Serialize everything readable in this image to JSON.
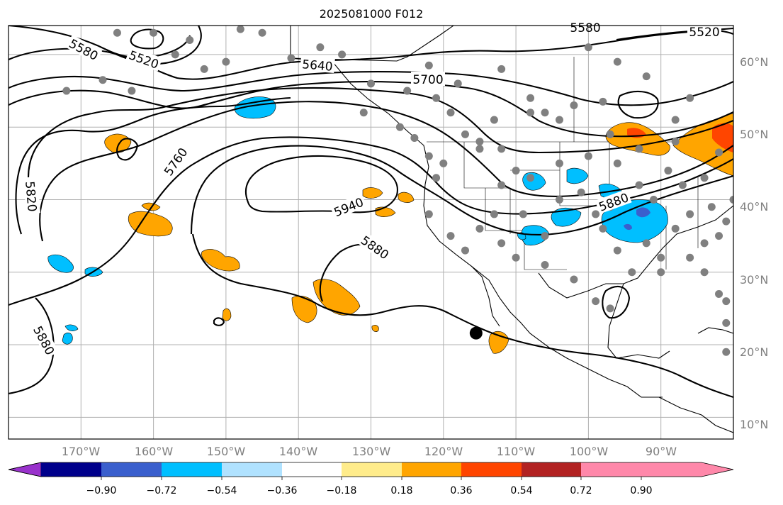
{
  "title": "2025081000 F012",
  "map": {
    "lon_range": [
      -180,
      -80
    ],
    "lat_range": [
      7,
      64
    ],
    "grid": true,
    "lon_ticks": [
      "170°W",
      "160°W",
      "150°W",
      "140°W",
      "130°W",
      "120°W",
      "110°W",
      "100°W",
      "90°W"
    ],
    "lat_ticks": [
      "10°N",
      "20°N",
      "30°N",
      "40°N",
      "50°N",
      "60°N"
    ],
    "lat_ticks_side": "right",
    "contour_labels": [
      "5580",
      "5520",
      "5640",
      "5700",
      "5760",
      "5820",
      "5940",
      "5880",
      "5880",
      "5880",
      "5580",
      "5520"
    ],
    "station_marker": {
      "lon": -115.5,
      "lat": 21.6,
      "color": "#000000"
    },
    "station_dot_color": "#808080"
  },
  "colorbar": {
    "orientation": "horizontal",
    "extend": "both",
    "tick_labels": [
      "−0.90",
      "−0.72",
      "−0.54",
      "−0.36",
      "−0.18",
      "0.18",
      "0.36",
      "0.54",
      "0.72",
      "0.90"
    ],
    "colors": [
      "#9932cc",
      "#00008b",
      "#3a5fcd",
      "#00bfff",
      "#b0e2ff",
      "#ffffff",
      "#ffec8b",
      "#ffa500",
      "#ff4500",
      "#b22222",
      "#ff88aa"
    ]
  }
}
